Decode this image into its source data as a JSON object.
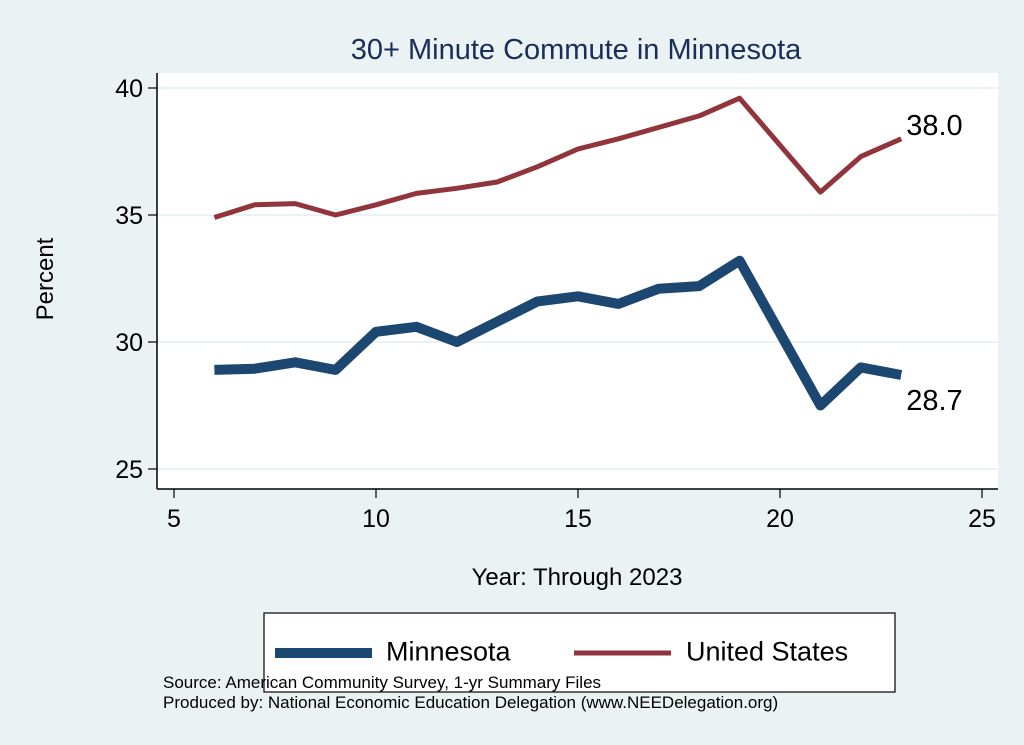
{
  "chart_data": {
    "type": "line",
    "title": "30+ Minute Commute in Minnesota",
    "xlabel": "Year: Through 2023",
    "ylabel": "Percent",
    "xlim": [
      5,
      25
    ],
    "ylim": [
      25,
      40
    ],
    "xticks": [
      5,
      10,
      15,
      20,
      25
    ],
    "yticks": [
      25,
      30,
      35,
      40
    ],
    "grid": true,
    "legend_position": "bottom",
    "series": [
      {
        "name": "Minnesota",
        "color": "#1C4770",
        "x": [
          6,
          7,
          8,
          9,
          10,
          11,
          12,
          13,
          14,
          15,
          16,
          17,
          18,
          19,
          21,
          22,
          23
        ],
        "values": [
          28.9,
          28.95,
          29.2,
          28.9,
          30.4,
          30.6,
          30.0,
          30.8,
          31.6,
          31.8,
          31.5,
          32.1,
          32.2,
          33.2,
          27.5,
          29.0,
          28.7
        ],
        "end_label": "28.7"
      },
      {
        "name": "United States",
        "color": "#90353B",
        "x": [
          6,
          7,
          8,
          9,
          10,
          11,
          12,
          13,
          14,
          15,
          16,
          17,
          18,
          19,
          21,
          22,
          23
        ],
        "values": [
          34.9,
          35.4,
          35.45,
          35.0,
          35.4,
          35.85,
          36.05,
          36.3,
          36.9,
          37.6,
          38.0,
          38.45,
          38.9,
          39.6,
          35.9,
          37.3,
          38.0
        ],
        "end_label": "38.0"
      }
    ],
    "notes": [
      "Source: American Community Survey, 1-yr Summary Files",
      "Produced by: National Economic Education Delegation (www.NEEDelegation.org)"
    ]
  }
}
